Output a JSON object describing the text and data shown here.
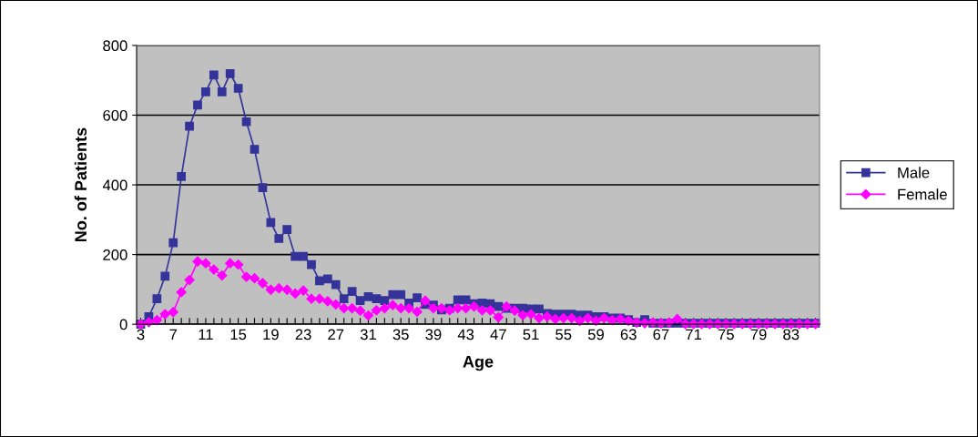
{
  "chart_data": {
    "type": "line",
    "xlabel": "Age",
    "ylabel": "No. of Patients",
    "categories": [
      "3",
      null,
      null,
      null,
      "7",
      null,
      null,
      null,
      "11",
      null,
      null,
      null,
      "15",
      null,
      null,
      null,
      "19",
      null,
      null,
      null,
      "23",
      null,
      null,
      null,
      "27",
      null,
      null,
      null,
      "31",
      null,
      null,
      null,
      "35",
      null,
      null,
      null,
      "39",
      null,
      null,
      null,
      "43",
      null,
      null,
      null,
      "47",
      null,
      null,
      null,
      "51",
      null,
      null,
      null,
      "55",
      null,
      null,
      null,
      "59",
      null,
      null,
      null,
      "63",
      null,
      null,
      null,
      "67",
      null,
      null,
      null,
      "71",
      null,
      null,
      null,
      "75",
      null,
      null,
      null,
      "79",
      null,
      null,
      null,
      "83",
      null,
      null,
      null
    ],
    "series": [
      {
        "name": "Male",
        "color": "#333399",
        "marker": "square",
        "values": [
          0,
          22,
          73,
          138,
          234,
          424,
          568,
          629,
          667,
          715,
          667,
          719,
          677,
          581,
          502,
          392,
          292,
          246,
          272,
          195,
          195,
          171,
          125,
          130,
          114,
          73,
          94,
          68,
          79,
          73,
          68,
          85,
          85,
          61,
          76,
          57,
          55,
          41,
          46,
          70,
          70,
          59,
          61,
          59,
          51,
          46,
          46,
          46,
          44,
          44,
          31,
          29,
          29,
          29,
          26,
          26,
          22,
          22,
          18,
          18,
          13,
          5,
          13,
          3,
          3,
          3,
          3,
          3,
          3,
          3,
          3,
          3,
          3,
          3,
          3,
          3,
          3,
          3,
          3,
          3,
          3,
          3,
          3,
          3
        ]
      },
      {
        "name": "Female",
        "color": "#ff00ff",
        "marker": "diamond",
        "values": [
          0,
          6,
          12,
          29,
          35,
          92,
          127,
          180,
          175,
          157,
          140,
          175,
          171,
          136,
          132,
          118,
          99,
          103,
          99,
          88,
          97,
          73,
          73,
          66,
          57,
          46,
          46,
          39,
          25,
          40,
          46,
          55,
          46,
          46,
          36,
          68,
          46,
          46,
          40,
          46,
          46,
          51,
          40,
          40,
          20,
          51,
          39,
          26,
          29,
          18,
          22,
          15,
          18,
          18,
          10,
          18,
          10,
          18,
          12,
          15,
          10,
          5,
          3,
          5,
          3,
          5,
          15,
          1,
          1,
          1,
          1,
          1,
          1,
          1,
          1,
          1,
          1,
          1,
          1,
          1,
          1,
          1,
          1,
          1
        ]
      }
    ],
    "ylim": [
      0,
      800
    ],
    "yticks": [
      0,
      200,
      400,
      600,
      800
    ],
    "grid": "y",
    "legend": "right"
  }
}
